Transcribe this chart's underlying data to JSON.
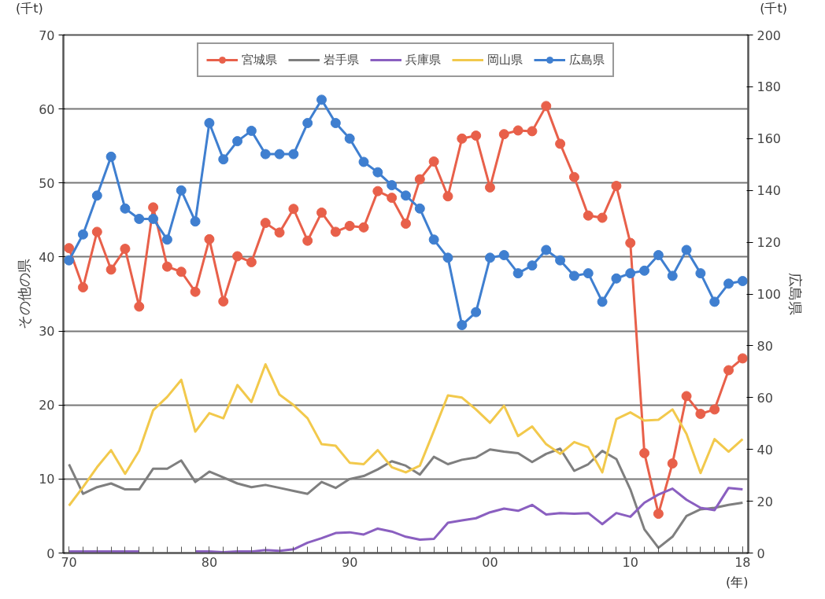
{
  "chart_data": {
    "type": "line",
    "ylabel": "その他の県",
    "y2label": "広島県",
    "annotations": [
      "(千t)",
      "(千t)",
      "(年)"
    ],
    "x": [
      1970,
      1971,
      1972,
      1973,
      1974,
      1975,
      1976,
      1977,
      1978,
      1979,
      1980,
      1981,
      1982,
      1983,
      1984,
      1985,
      1986,
      1987,
      1988,
      1989,
      1990,
      1991,
      1992,
      1993,
      1994,
      1995,
      1996,
      1997,
      1998,
      1999,
      2000,
      2001,
      2002,
      2003,
      2004,
      2005,
      2006,
      2007,
      2008,
      2009,
      2010,
      2011,
      2012,
      2013,
      2014,
      2015,
      2016,
      2017,
      2018
    ],
    "series": [
      {
        "name": "宮城県",
        "color": "#e8604a",
        "marker": "circle",
        "values": [
          41.2,
          35.9,
          43.4,
          38.3,
          41.1,
          33.3,
          46.7,
          38.7,
          38.0,
          35.3,
          42.4,
          34.0,
          40.1,
          39.3,
          44.6,
          43.3,
          46.5,
          42.2,
          46.0,
          43.4,
          44.2,
          44.0,
          48.9,
          48.0,
          44.5,
          50.5,
          52.9,
          48.2,
          56.0,
          56.4,
          49.4,
          56.6,
          57.1,
          57.0,
          60.4,
          55.3,
          50.8,
          45.6,
          45.3,
          49.6,
          41.9,
          13.5,
          5.3,
          12.1,
          21.2,
          18.8,
          19.4,
          24.7,
          26.3
        ]
      },
      {
        "name": "岩手県",
        "color": "#7f7f7f",
        "marker": "none",
        "values": [
          12.0,
          8.0,
          8.9,
          9.4,
          8.6,
          8.6,
          11.4,
          11.4,
          12.5,
          9.6,
          11.0,
          10.2,
          9.4,
          8.9,
          9.2,
          8.8,
          8.4,
          8.0,
          9.6,
          8.8,
          10.0,
          10.4,
          11.3,
          12.4,
          11.8,
          10.6,
          13.0,
          12.0,
          12.6,
          12.9,
          14.0,
          13.7,
          13.5,
          12.3,
          13.4,
          14.1,
          11.1,
          12.0,
          13.8,
          12.7,
          8.6,
          3.2,
          0.7,
          2.2,
          5.0,
          5.9,
          6.1,
          6.5,
          6.8
        ]
      },
      {
        "name": "兵庫県",
        "color": "#8a5fc0",
        "marker": "none",
        "values": [
          0.2,
          0.2,
          0.2,
          0.2,
          0.2,
          0.2,
          null,
          null,
          null,
          0.2,
          0.2,
          0.1,
          0.2,
          0.2,
          0.4,
          0.3,
          0.5,
          1.4,
          2.0,
          2.7,
          2.8,
          2.5,
          3.3,
          2.9,
          2.2,
          1.8,
          1.9,
          4.1,
          4.4,
          4.7,
          5.5,
          6.0,
          5.7,
          6.5,
          5.2,
          5.4,
          5.3,
          5.4,
          3.9,
          5.4,
          4.9,
          6.8,
          7.9,
          8.7,
          7.2,
          6.1,
          5.8,
          8.8,
          8.6
        ]
      },
      {
        "name": "岡山県",
        "color": "#f2c94c",
        "marker": "none",
        "values": [
          6.4,
          8.9,
          11.6,
          13.9,
          10.7,
          13.8,
          19.3,
          21.1,
          23.4,
          16.4,
          18.9,
          18.2,
          22.7,
          20.4,
          25.5,
          21.4,
          20.0,
          18.2,
          14.7,
          14.5,
          12.2,
          12.0,
          13.9,
          11.6,
          10.9,
          11.8,
          16.5,
          21.3,
          21.0,
          19.4,
          17.6,
          19.9,
          15.8,
          17.1,
          14.7,
          13.4,
          15.0,
          14.3,
          10.9,
          18.1,
          19.0,
          17.9,
          18.0,
          19.4,
          16.1,
          10.8,
          15.4,
          13.7,
          15.4
        ]
      },
      {
        "name": "広島県",
        "color": "#3f7fd0",
        "marker": "circle",
        "axis": "y2",
        "values": [
          113,
          123,
          138,
          153,
          133,
          129,
          129,
          121,
          140,
          128,
          166,
          152,
          159,
          163,
          154,
          154,
          154,
          166,
          175,
          166,
          160,
          151,
          147,
          142,
          138,
          133,
          121,
          114,
          88,
          93,
          114,
          115,
          108,
          111,
          117,
          113,
          107,
          108,
          97,
          106,
          108,
          109,
          115,
          107,
          117,
          108,
          97,
          104,
          105
        ]
      }
    ],
    "xlim": [
      1969.6,
      2018.4
    ],
    "xticks": [
      {
        "value": 1970,
        "label": "70"
      },
      {
        "value": 1980,
        "label": "80"
      },
      {
        "value": 1990,
        "label": "90"
      },
      {
        "value": 2000,
        "label": "00"
      },
      {
        "value": 2010,
        "label": "10"
      },
      {
        "value": 2018,
        "label": "18"
      }
    ],
    "ylim": [
      0,
      70
    ],
    "yticks": [
      0,
      10,
      20,
      30,
      40,
      50,
      60,
      70
    ],
    "y2lim": [
      0,
      200
    ],
    "y2ticks": [
      0,
      20,
      40,
      60,
      80,
      100,
      120,
      140,
      160,
      180,
      200
    ],
    "grid": "y",
    "legend": "top"
  }
}
